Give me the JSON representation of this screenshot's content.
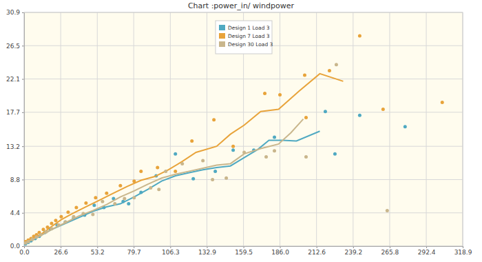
{
  "chart_data": {
    "type": "line",
    "title": "Chart :power_in/ windpower",
    "xlim": [
      0,
      318.9
    ],
    "ylim": [
      0,
      30.9
    ],
    "xticks": [
      {
        "value": 0,
        "label": "0.0"
      },
      26.6,
      53.2,
      79.7,
      106.3,
      132.9,
      159.5,
      {
        "value": 186,
        "label": "186.0"
      },
      212.6,
      239.2,
      265.8,
      292.4,
      318.9
    ],
    "yticks": [
      {
        "value": 0,
        "label": "0.0"
      },
      4.4,
      8.8,
      13.2,
      17.7,
      22.1,
      26.5,
      30.9
    ],
    "grid": true,
    "legend": "top",
    "series": [
      {
        "name": "Design 1 Load 3",
        "color": "#4fa9c2",
        "marker": "circle",
        "line_style": "solid",
        "x": [
          0,
          10,
          20,
          30,
          40,
          50,
          60,
          70,
          80,
          90,
          100,
          110,
          120,
          130,
          140,
          150,
          160,
          170,
          178,
          188,
          198,
          215
        ],
        "values": [
          0.3,
          1.2,
          2.2,
          3.0,
          3.8,
          4.6,
          5.2,
          5.6,
          6.5,
          7.5,
          8.6,
          9.3,
          9.7,
          10.1,
          10.4,
          10.6,
          11.7,
          12.8,
          14.0,
          14.0,
          13.9,
          15.2
        ],
        "scatter_x": [
          1,
          3,
          5,
          8,
          11,
          15,
          19,
          24,
          30,
          36,
          44,
          51,
          58,
          65,
          72,
          76,
          85,
          96,
          110,
          123,
          139,
          152,
          167,
          182,
          219,
          226,
          244,
          277
        ],
        "scatter_y": [
          0.3,
          0.5,
          0.7,
          1.0,
          1.3,
          1.8,
          2.3,
          2.8,
          3.2,
          3.7,
          4.1,
          5.4,
          5.1,
          6.3,
          5.9,
          5.6,
          7.1,
          9.3,
          12.2,
          8.9,
          9.9,
          12.7,
          12.7,
          14.4,
          17.8,
          12.2,
          17.3,
          15.8
        ]
      },
      {
        "name": "Design 7 Load 3",
        "color": "#e8a33a",
        "marker": "circle",
        "line_style": "solid",
        "x": [
          0,
          5,
          10,
          15,
          20,
          27,
          35,
          45,
          55,
          65,
          75,
          85,
          95,
          105,
          115,
          125,
          140,
          150,
          160,
          172,
          185,
          200,
          215,
          232
        ],
        "values": [
          0.6,
          0.8,
          1.3,
          1.9,
          2.6,
          3.5,
          4.3,
          5.2,
          6.1,
          7.0,
          7.9,
          8.7,
          9.2,
          10.1,
          11.2,
          12.4,
          13.2,
          14.8,
          16.0,
          17.8,
          18.1,
          20.5,
          22.8,
          21.8
        ],
        "scatter_x": [
          1,
          3,
          5,
          7,
          9,
          11,
          14,
          17,
          20,
          23,
          27,
          32,
          38,
          45,
          52,
          60,
          70,
          80,
          85,
          97,
          110,
          122,
          138,
          152,
          175,
          186,
          204,
          205,
          222,
          244,
          261,
          304
        ],
        "scatter_y": [
          0.6,
          0.8,
          1.0,
          1.3,
          1.5,
          1.8,
          2.2,
          2.5,
          3.0,
          3.4,
          3.9,
          4.5,
          5.1,
          5.7,
          6.4,
          7.0,
          8.0,
          8.6,
          9.9,
          10.4,
          9.9,
          13.9,
          16.7,
          13.2,
          20.2,
          20.0,
          22.6,
          17.0,
          23.2,
          27.8,
          18.1,
          19.0
        ]
      },
      {
        "name": "Design 30 Load 3",
        "color": "#c9b68c",
        "marker": "circle",
        "line_style": "solid",
        "x": [
          0,
          10,
          20,
          30,
          40,
          50,
          60,
          70,
          80,
          90,
          100,
          110,
          120,
          130,
          140,
          150,
          160,
          172,
          185,
          194,
          203
        ],
        "values": [
          0.4,
          1.2,
          2.2,
          3.1,
          4.0,
          4.7,
          5.5,
          6.5,
          7.3,
          8.2,
          9.0,
          9.5,
          9.9,
          10.3,
          10.7,
          10.9,
          12.2,
          12.9,
          13.5,
          15.0,
          16.8
        ],
        "scatter_x": [
          1,
          3,
          6,
          9,
          12,
          16,
          20,
          25,
          30,
          36,
          43,
          50,
          57,
          66,
          73,
          80,
          92,
          98,
          103,
          115,
          130,
          137,
          147,
          160,
          176,
          182,
          205,
          227,
          264
        ],
        "scatter_y": [
          0.4,
          0.6,
          0.9,
          1.2,
          1.5,
          1.9,
          2.3,
          2.8,
          3.2,
          3.9,
          4.3,
          4.2,
          5.9,
          5.6,
          6.3,
          6.4,
          7.7,
          7.5,
          9.9,
          10.9,
          11.3,
          8.8,
          9.0,
          12.4,
          11.8,
          12.6,
          11.8,
          24.0,
          4.7
        ]
      }
    ]
  }
}
